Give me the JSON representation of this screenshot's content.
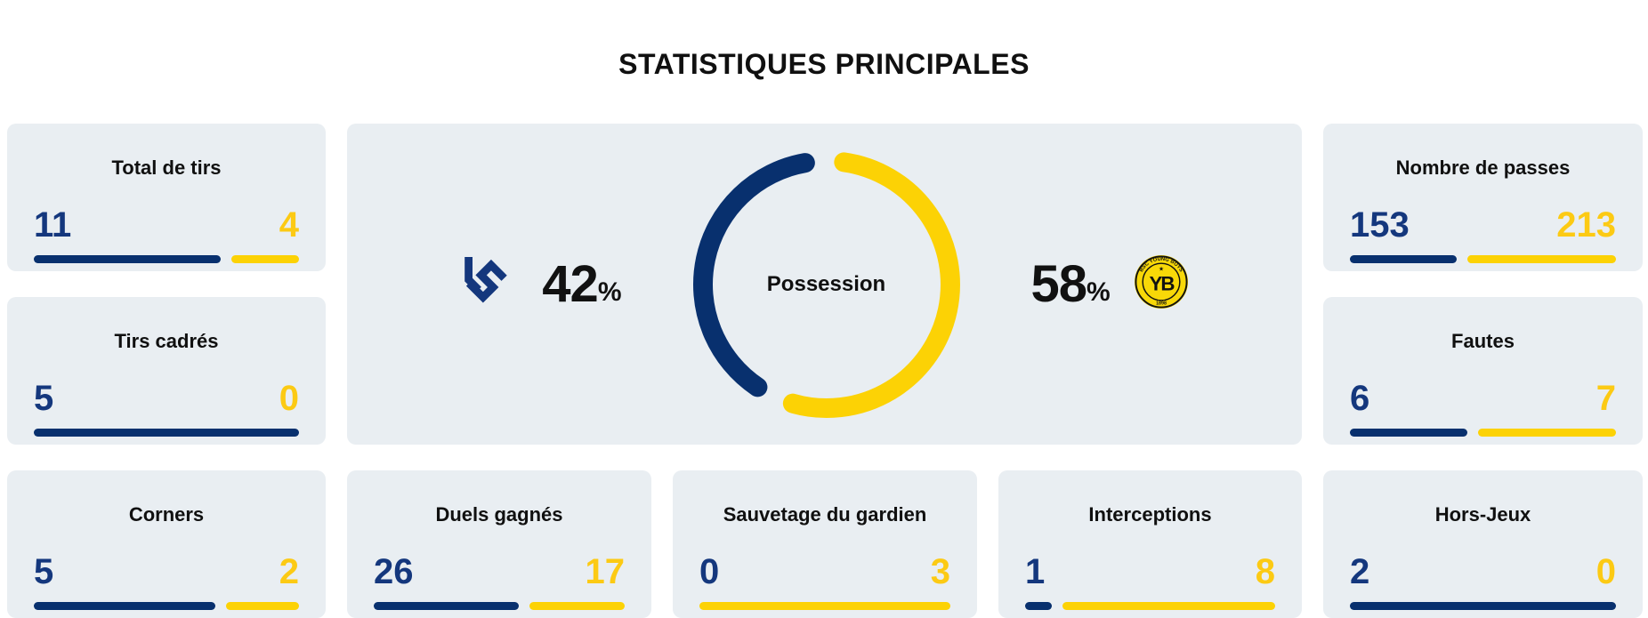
{
  "title": "STATISTIQUES PRINCIPALES",
  "colors": {
    "home": "#08306e",
    "home_number": "#14377d",
    "away": "#fcd205",
    "away_number": "#fcca14",
    "card_bg": "#e9eef2",
    "text": "#101010",
    "yb_yellow": "#f8d808"
  },
  "teams": {
    "home": {
      "name": "Lausanne-Sport",
      "abbr": "LS"
    },
    "away": {
      "name": "BSC Young Boys",
      "abbr": "YB",
      "ring_text": "BSC YOUNG BOYS",
      "founded": "1898",
      "star": "★"
    }
  },
  "possession": {
    "label": "Possession",
    "home_pct": "42",
    "away_pct": "58",
    "pct_symbol": "%"
  },
  "stats": [
    {
      "label": "Total de tirs",
      "home": 11,
      "away": 4,
      "col": 1,
      "row": 1
    },
    {
      "label": "Tirs cadrés",
      "home": 5,
      "away": 0,
      "col": 1,
      "row": 2
    },
    {
      "label": "Nombre de passes",
      "home": 153,
      "away": 213,
      "col": 5,
      "row": 1
    },
    {
      "label": "Fautes",
      "home": 6,
      "away": 7,
      "col": 5,
      "row": 2
    },
    {
      "label": "Corners",
      "home": 5,
      "away": 2,
      "col": 1,
      "row": 3
    },
    {
      "label": "Duels gagnés",
      "home": 26,
      "away": 17,
      "col": 2,
      "row": 3
    },
    {
      "label": "Sauvetage du gardien",
      "home": 0,
      "away": 3,
      "col": 3,
      "row": 3
    },
    {
      "label": "Interceptions",
      "home": 1,
      "away": 8,
      "col": 4,
      "row": 3
    },
    {
      "label": "Hors-Jeux",
      "home": 2,
      "away": 0,
      "col": 5,
      "row": 3
    }
  ],
  "chart_data": [
    {
      "type": "pie",
      "style": "donut, thick rounded-cap arcs with gaps at the two split points",
      "title": "Possession",
      "center_label": "Possession",
      "labels": [
        "Lausanne-Sport",
        "BSC Young Boys"
      ],
      "values": [
        42,
        58
      ],
      "unit": "%",
      "colors": [
        "#08306e",
        "#fcd205"
      ],
      "legend_position": "sides (team logo + percentage on each side of donut)"
    },
    {
      "type": "bar",
      "style": "per-stat horizontal comparison bars, length proportional to value share, home left navy / away right yellow",
      "title": "STATISTIQUES PRINCIPALES",
      "categories": [
        "Total de tirs",
        "Tirs cadrés",
        "Nombre de passes",
        "Fautes",
        "Corners",
        "Duels gagnés",
        "Sauvetage du gardien",
        "Interceptions",
        "Hors-Jeux"
      ],
      "series": [
        {
          "name": "Lausanne-Sport",
          "color": "#08306e",
          "values": [
            11,
            5,
            153,
            6,
            5,
            26,
            0,
            1,
            2
          ]
        },
        {
          "name": "BSC Young Boys",
          "color": "#fcd205",
          "values": [
            4,
            0,
            213,
            7,
            2,
            17,
            3,
            8,
            0
          ]
        }
      ]
    }
  ]
}
